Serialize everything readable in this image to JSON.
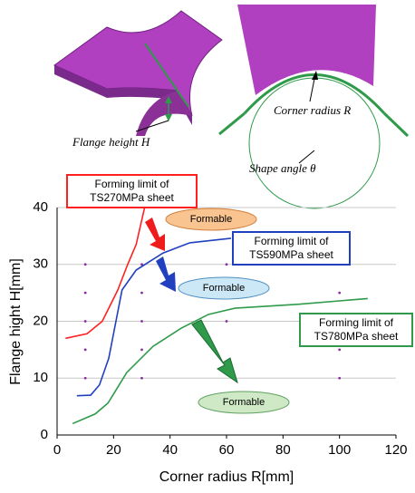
{
  "diagram_labels": {
    "flange_height": "Flange height H",
    "corner_radius": "Corner radius R",
    "shape_angle": "Shape angle θ"
  },
  "chart_data": {
    "type": "line",
    "xlabel": "Corner radius R[mm]",
    "ylabel": "Flange hight H[mm]",
    "xlim": [
      0,
      120
    ],
    "ylim": [
      0,
      40
    ],
    "xticks": [
      0,
      20,
      40,
      60,
      80,
      100,
      120
    ],
    "yticks": [
      0,
      10,
      20,
      30,
      40
    ],
    "grid": true,
    "series": [
      {
        "name": "Forming limit of TS270MPa sheet",
        "color": "#ff2020",
        "x": [
          3,
          10.6,
          16,
          21.5,
          25,
          28,
          31
        ],
        "values": [
          17,
          17.8,
          20,
          25.5,
          30,
          33.5,
          40
        ]
      },
      {
        "name": "Forming limit of TS590MPa sheet",
        "color": "#2040c0",
        "x": [
          7,
          11.9,
          15,
          18.3,
          23,
          28,
          37.5,
          47,
          61.6
        ],
        "values": [
          6.9,
          7,
          8.8,
          13.5,
          25.5,
          29,
          32,
          33.8,
          34.6
        ]
      },
      {
        "name": "Forming limit of TS780MPa sheet",
        "color": "#2e9a4a",
        "x": [
          5.5,
          13.5,
          18,
          24.7,
          34,
          44,
          53.6,
          63,
          85.7,
          110
        ],
        "values": [
          2,
          3.7,
          5.6,
          11,
          15.6,
          18.8,
          21.2,
          22.3,
          23,
          24
        ]
      }
    ],
    "markers": {
      "color": "#8a2aa0",
      "x": [
        10,
        10,
        10,
        10,
        10,
        30,
        30,
        30,
        30,
        30,
        60,
        60,
        100,
        100,
        100
      ],
      "y": [
        10,
        15,
        20,
        25,
        30,
        10,
        15,
        20,
        25,
        30,
        20,
        30,
        10,
        15,
        25
      ]
    },
    "annotations": [
      "Formable",
      "Formable",
      "Formable"
    ]
  }
}
